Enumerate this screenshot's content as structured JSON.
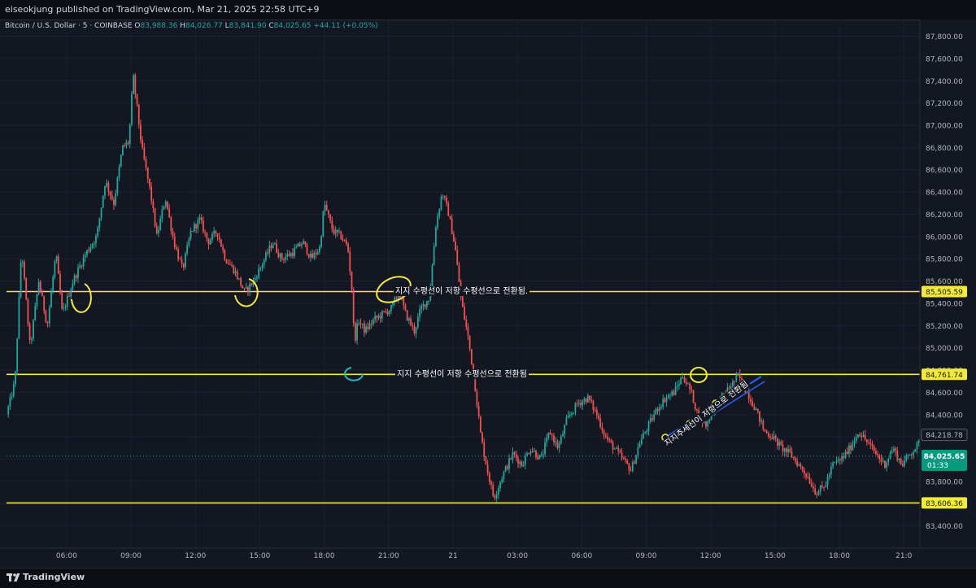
{
  "header": {
    "published": "eiseokjung published on TradingView.com, Mar 21, 2025 22:58 UTC+9"
  },
  "symbol": {
    "name": "Bitcoin / U.S. Dollar · 5 · COINBASE",
    "o_label": "O",
    "o": "83,988.36",
    "h_label": "H",
    "h": "84,026.77",
    "l_label": "L",
    "l": "83,841.90",
    "c_label": "C",
    "c": "84,025.65",
    "change": "+44.11 (+0.05%)"
  },
  "footer": {
    "brand": "TradingView"
  },
  "colors": {
    "background": "#131722",
    "up": "#26a69a",
    "down": "#ef5350",
    "hline": "#f2e93a",
    "grid": "#1c2030",
    "cyan": "#22b8cf",
    "blue": "#2962ff"
  },
  "chart_data": {
    "type": "candlestick",
    "title": "Bitcoin / U.S. Dollar · 5 · COINBASE",
    "ylim": [
      83200,
      87950
    ],
    "y_ticks": [
      83400,
      83600,
      83800,
      84000,
      84200,
      84400,
      84600,
      84800,
      85000,
      85200,
      85400,
      85600,
      85800,
      86000,
      86200,
      86400,
      86600,
      86800,
      87000,
      87200,
      87400,
      87600,
      87800
    ],
    "y_tick_labels": [
      "83,400.00",
      "83,600.00",
      "83,800.00",
      "84,000.00",
      "84,200.00",
      "84,400.00",
      "84,600.00",
      "84,800.00",
      "85,000.00",
      "85,200.00",
      "85,400.00",
      "85,600.00",
      "85,800.00",
      "86,000.00",
      "86,200.00",
      "86,400.00",
      "86,600.00",
      "86,800.00",
      "87,000.00",
      "87,200.00",
      "87,400.00",
      "87,600.00",
      "87,800.00"
    ],
    "x_range_hours": [
      3.2,
      45.75
    ],
    "x_ticks": [
      {
        "t": 6,
        "label": "06:00"
      },
      {
        "t": 9,
        "label": "09:00"
      },
      {
        "t": 12,
        "label": "12:00"
      },
      {
        "t": 15,
        "label": "15:00"
      },
      {
        "t": 18,
        "label": "18:00"
      },
      {
        "t": 21,
        "label": "21:00"
      },
      {
        "t": 24,
        "label": "21"
      },
      {
        "t": 27,
        "label": "03:00"
      },
      {
        "t": 30,
        "label": "06:00"
      },
      {
        "t": 33,
        "label": "09:00"
      },
      {
        "t": 36,
        "label": "12:00"
      },
      {
        "t": 39,
        "label": "15:00"
      },
      {
        "t": 42,
        "label": "18:00"
      },
      {
        "t": 45,
        "label": "21:0"
      }
    ],
    "price_path": [
      [
        3.2,
        84400
      ],
      [
        3.6,
        84700
      ],
      [
        3.9,
        85900
      ],
      [
        4.3,
        85000
      ],
      [
        4.7,
        85600
      ],
      [
        5.1,
        85200
      ],
      [
        5.5,
        85850
      ],
      [
        5.8,
        85300
      ],
      [
        6.3,
        85600
      ],
      [
        6.9,
        85850
      ],
      [
        7.4,
        86000
      ],
      [
        7.8,
        86500
      ],
      [
        8.2,
        86300
      ],
      [
        8.6,
        86800
      ],
      [
        8.9,
        86850
      ],
      [
        9.1,
        87450
      ],
      [
        9.5,
        86800
      ],
      [
        9.9,
        86400
      ],
      [
        10.2,
        86000
      ],
      [
        10.6,
        86350
      ],
      [
        11.0,
        85950
      ],
      [
        11.4,
        85700
      ],
      [
        11.8,
        86050
      ],
      [
        12.2,
        86150
      ],
      [
        12.6,
        85950
      ],
      [
        13.0,
        86050
      ],
      [
        13.4,
        85800
      ],
      [
        13.8,
        85700
      ],
      [
        14.3,
        85500
      ],
      [
        14.7,
        85600
      ],
      [
        15.1,
        85750
      ],
      [
        15.6,
        85950
      ],
      [
        16.0,
        85800
      ],
      [
        16.5,
        85850
      ],
      [
        17.0,
        85950
      ],
      [
        17.4,
        85800
      ],
      [
        17.8,
        85900
      ],
      [
        18.0,
        86300
      ],
      [
        18.4,
        86050
      ],
      [
        18.8,
        86000
      ],
      [
        19.1,
        85900
      ],
      [
        19.3,
        85500
      ],
      [
        19.4,
        85050
      ],
      [
        19.6,
        85250
      ],
      [
        19.9,
        85150
      ],
      [
        20.3,
        85250
      ],
      [
        20.7,
        85300
      ],
      [
        21.1,
        85350
      ],
      [
        21.5,
        85500
      ],
      [
        21.8,
        85300
      ],
      [
        22.2,
        85150
      ],
      [
        22.5,
        85350
      ],
      [
        22.9,
        85450
      ],
      [
        23.2,
        86100
      ],
      [
        23.5,
        86400
      ],
      [
        23.8,
        86200
      ],
      [
        24.1,
        85900
      ],
      [
        24.4,
        85400
      ],
      [
        24.7,
        85100
      ],
      [
        25.0,
        84700
      ],
      [
        25.3,
        84200
      ],
      [
        25.6,
        83900
      ],
      [
        25.9,
        83650
      ],
      [
        26.3,
        83850
      ],
      [
        26.8,
        84050
      ],
      [
        27.2,
        83950
      ],
      [
        27.6,
        84100
      ],
      [
        28.1,
        84000
      ],
      [
        28.5,
        84250
      ],
      [
        28.9,
        84100
      ],
      [
        29.3,
        84350
      ],
      [
        29.8,
        84500
      ],
      [
        30.3,
        84550
      ],
      [
        30.7,
        84400
      ],
      [
        31.1,
        84200
      ],
      [
        31.5,
        84100
      ],
      [
        31.9,
        84000
      ],
      [
        32.3,
        83900
      ],
      [
        32.7,
        84150
      ],
      [
        33.1,
        84300
      ],
      [
        33.5,
        84450
      ],
      [
        33.9,
        84550
      ],
      [
        34.3,
        84600
      ],
      [
        34.7,
        84750
      ],
      [
        35.1,
        84600
      ],
      [
        35.4,
        84400
      ],
      [
        35.8,
        84300
      ],
      [
        36.1,
        84450
      ],
      [
        36.5,
        84550
      ],
      [
        36.9,
        84650
      ],
      [
        37.3,
        84750
      ],
      [
        37.7,
        84600
      ],
      [
        38.1,
        84450
      ],
      [
        38.5,
        84250
      ],
      [
        38.9,
        84200
      ],
      [
        39.3,
        84100
      ],
      [
        39.7,
        84050
      ],
      [
        40.1,
        83950
      ],
      [
        40.5,
        83850
      ],
      [
        40.9,
        83700
      ],
      [
        41.3,
        83750
      ],
      [
        41.7,
        83950
      ],
      [
        42.1,
        84000
      ],
      [
        42.5,
        84100
      ],
      [
        42.9,
        84250
      ],
      [
        43.3,
        84150
      ],
      [
        43.7,
        84050
      ],
      [
        44.1,
        83950
      ],
      [
        44.5,
        84100
      ],
      [
        44.9,
        83950
      ],
      [
        45.3,
        84050
      ],
      [
        45.75,
        84150
      ]
    ],
    "horizontal_lines": [
      {
        "price": 85505.59,
        "label": "85,505.59"
      },
      {
        "price": 84761.74,
        "label": "84,761.74"
      },
      {
        "price": 83606.36,
        "label": "83,606.36"
      }
    ],
    "current_price": {
      "value": 84025.65,
      "label": "84,025.65",
      "countdown": "01:33"
    },
    "gray_price": {
      "value": 84218.78,
      "label": "84,218.78"
    },
    "annotations": {
      "text1": "지지 수평선이 저항 수평선으로 전환됨.",
      "text2": "지지 수평선이 저항 수평선으로 전환됨",
      "text3": "지지추세선이 저항으로 전환됨"
    }
  }
}
